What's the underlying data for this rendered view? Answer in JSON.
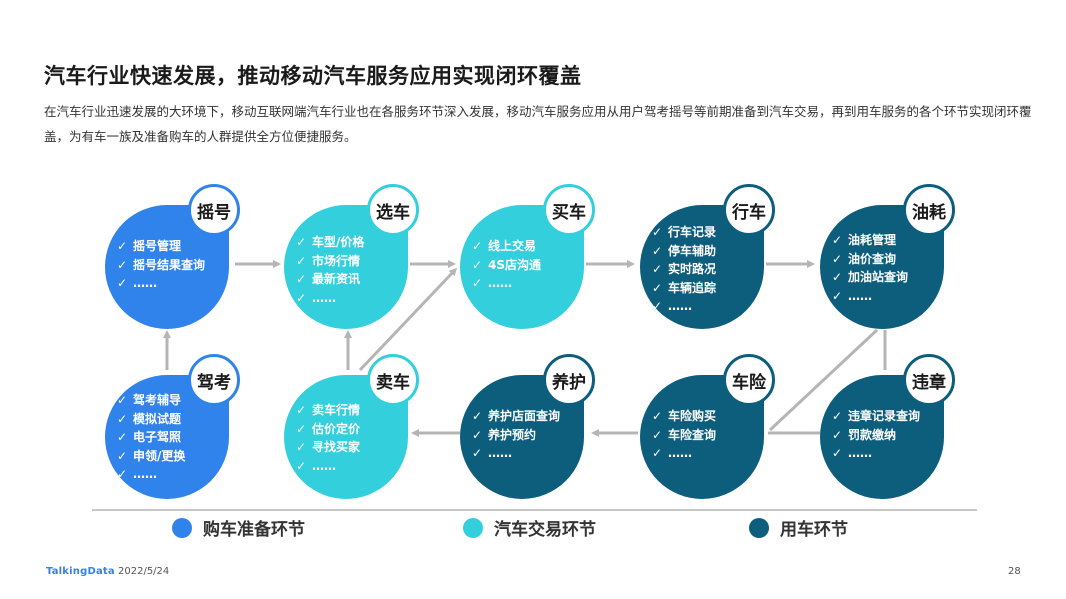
{
  "title": "汽车行业快速发展，推动移动汽车服务应用实现闭环覆盖",
  "subtitle": "在汽车行业迅速发展的大环境下，移动互联网端汽车行业也在各服务环节深入发展，移动汽车服务应用从用户驾考摇号等前期准备到汽车交易，再到用车服务的各个环节实现闭环覆盖，为有车一族及准备购车的人群提供全方位便捷服务。",
  "colors": {
    "prep": "#2f83ea",
    "trade": "#33cfdc",
    "use": "#0d5e7d",
    "arrow": "#b5b5b5"
  },
  "check_mark": "✓",
  "nodes": {
    "yaohao": {
      "label": "摇号",
      "items": [
        "摇号管理",
        "摇号结果查询",
        "……"
      ]
    },
    "xuanche": {
      "label": "选车",
      "items": [
        "车型/价格",
        "市场行情",
        "最新资讯",
        "……"
      ]
    },
    "maiche": {
      "label": "买车",
      "items": [
        "线上交易",
        "4S店沟通",
        "……"
      ]
    },
    "xingche": {
      "label": "行车",
      "items": [
        "行车记录",
        "停车辅助",
        "实时路况",
        "车辆追踪",
        "……"
      ]
    },
    "youhao": {
      "label": "油耗",
      "items": [
        "油耗管理",
        "油价查询",
        "加油站查询",
        "……"
      ]
    },
    "jiakao": {
      "label": "驾考",
      "items": [
        "驾考辅导",
        "模拟试题",
        "电子驾照",
        "申领/更换",
        "……"
      ]
    },
    "maiche2": {
      "label": "卖车",
      "items": [
        "卖车行情",
        "估价定价",
        "寻找买家",
        "……"
      ]
    },
    "yanghu": {
      "label": "养护",
      "items": [
        "养护店面查询",
        "养护预约",
        "……"
      ]
    },
    "chexian": {
      "label": "车险",
      "items": [
        "车险购买",
        "车险查询",
        "……"
      ]
    },
    "weizhang": {
      "label": "违章",
      "items": [
        "违章记录查询",
        "罚款缴纳",
        "……"
      ]
    }
  },
  "legend": [
    {
      "label": "购车准备环节",
      "color": "#2f83ea"
    },
    {
      "label": "汽车交易环节",
      "color": "#33cfdc"
    },
    {
      "label": "用车环节",
      "color": "#0d5e7d"
    }
  ],
  "footer": {
    "logo": "TalkingData",
    "date": "2022/5/24",
    "page": "28"
  }
}
